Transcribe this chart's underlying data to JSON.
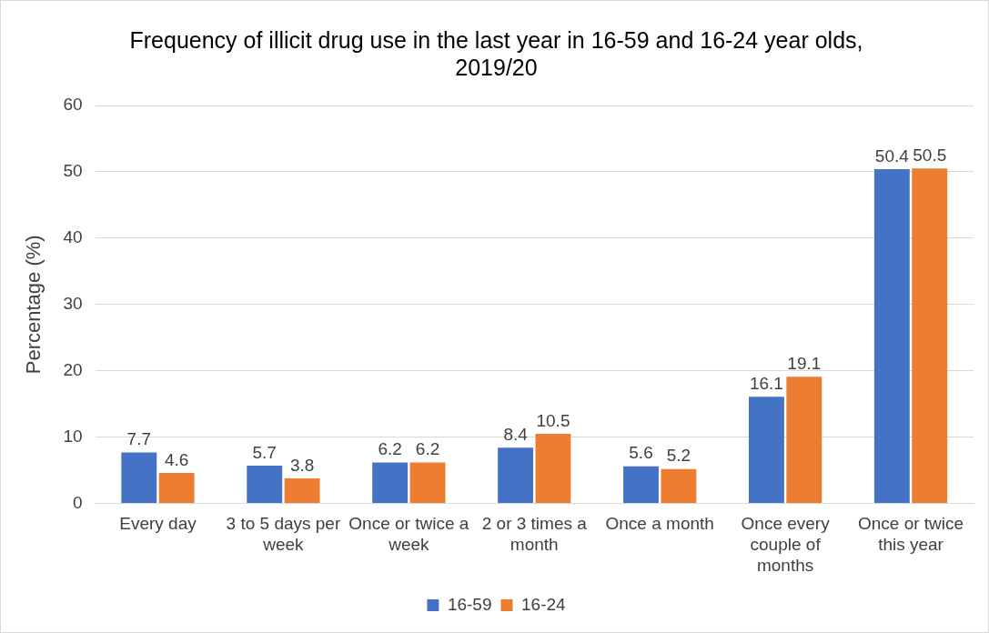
{
  "chart_data": {
    "type": "bar",
    "title": "Frequency of illicit drug use in the last year in 16-59 and 16-24 year olds, 2019/20",
    "ylabel": "Percentage (%)",
    "categories": [
      "Every day",
      "3 to 5 days per week",
      "Once or twice a week",
      "2 or 3 times a month",
      "Once a month",
      "Once every couple of months",
      "Once or twice this year"
    ],
    "series": [
      {
        "name": "16-59",
        "color": "#4472c4",
        "values": [
          7.7,
          5.7,
          6.2,
          8.4,
          5.6,
          16.1,
          50.4
        ]
      },
      {
        "name": "16-24",
        "color": "#ed7d31",
        "values": [
          4.6,
          3.8,
          6.2,
          10.5,
          5.2,
          19.1,
          50.5
        ]
      }
    ],
    "ylim": [
      0,
      60
    ],
    "yticks": [
      0,
      10,
      20,
      30,
      40,
      50,
      60
    ],
    "grid": "y",
    "legend": "bottom",
    "data_labels": true
  }
}
